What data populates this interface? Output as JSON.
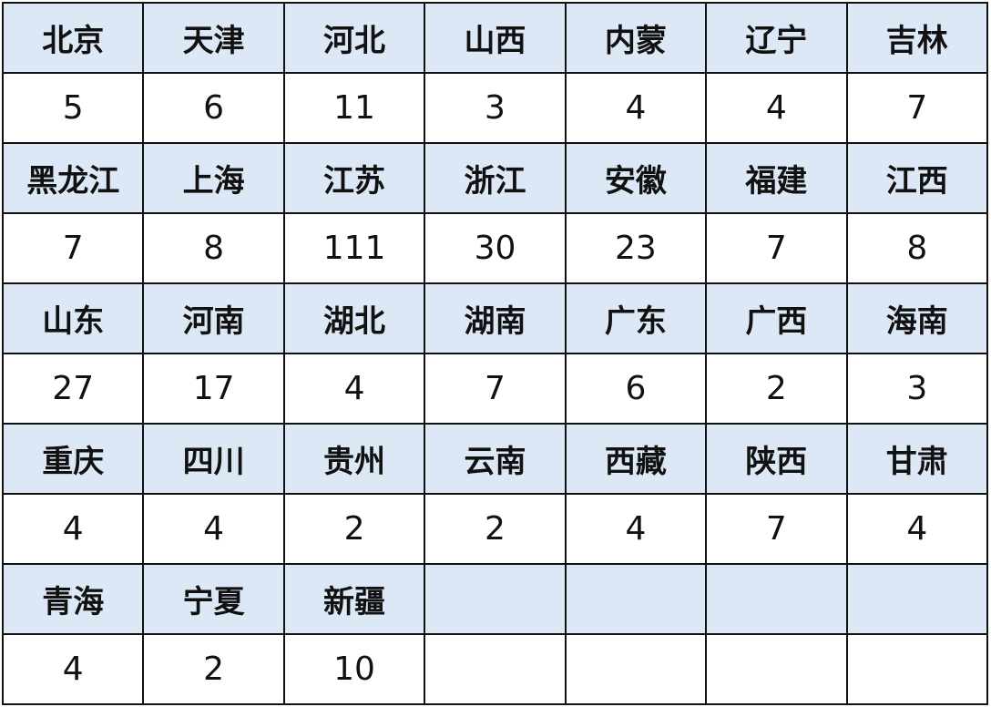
{
  "colors": {
    "header_bg": "#dce8f5",
    "value_bg": "#ffffff",
    "border": "#111111"
  },
  "groups": [
    {
      "regions": [
        "北京",
        "天津",
        "河北",
        "山西",
        "内蒙",
        "辽宁",
        "吉林"
      ],
      "values": [
        "5",
        "6",
        "11",
        "3",
        "4",
        "4",
        "7"
      ]
    },
    {
      "regions": [
        "黑龙江",
        "上海",
        "江苏",
        "浙江",
        "安徽",
        "福建",
        "江西"
      ],
      "values": [
        "7",
        "8",
        "111",
        "30",
        "23",
        "7",
        "8"
      ]
    },
    {
      "regions": [
        "山东",
        "河南",
        "湖北",
        "湖南",
        "广东",
        "广西",
        "海南"
      ],
      "values": [
        "27",
        "17",
        "4",
        "7",
        "6",
        "2",
        "3"
      ]
    },
    {
      "regions": [
        "重庆",
        "四川",
        "贵州",
        "云南",
        "西藏",
        "陕西",
        "甘肃"
      ],
      "values": [
        "4",
        "4",
        "2",
        "2",
        "4",
        "7",
        "4"
      ]
    },
    {
      "regions": [
        "青海",
        "宁夏",
        "新疆",
        "",
        "",
        "",
        ""
      ],
      "values": [
        "4",
        "2",
        "10",
        "",
        "",
        "",
        ""
      ]
    }
  ]
}
